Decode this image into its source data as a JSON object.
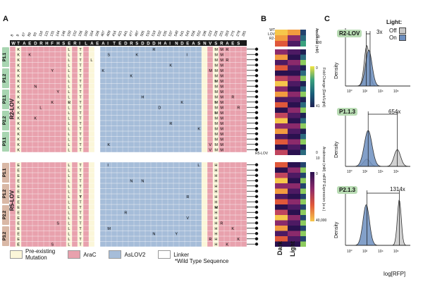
{
  "figure": {
    "panel_labels": [
      "A",
      "B",
      "C"
    ],
    "header_positions": [
      "8",
      "9",
      "67",
      "89",
      "93",
      "110",
      "121",
      "131",
      "144",
      "146",
      "150",
      "152",
      "156",
      "160",
      "164",
      "166",
      "407",
      "409",
      "416",
      "421",
      "441",
      "477",
      "487",
      "505",
      "510",
      "519",
      "532",
      "535",
      "537",
      "540",
      "541",
      "543",
      "556",
      "552",
      "196",
      "223",
      "226",
      "251",
      "263",
      "275",
      "278",
      "281"
    ],
    "wt_sequence": "WTAEDRHFHSERILAEAITEDRSDDDHAINDEASNVSRAES",
    "rows": [
      {
        "label": "WT",
        "subtitle": "*"
      },
      {
        "label": "P1.1",
        "group": "R2-LOV"
      },
      {
        "label": "P1.2",
        "group": "R2-LOV"
      },
      {
        "label": "P2.1",
        "group": "R2-LOV"
      },
      {
        "label": "P2.2",
        "group": "R2-LOV"
      },
      {
        "label": "P3.1",
        "group": "R2-LOV"
      },
      {
        "label": "P1.1",
        "group": "R5-LOV"
      },
      {
        "label": "P1.2",
        "group": "R5-LOV"
      },
      {
        "label": "P2.2",
        "group": "R5-LOV"
      },
      {
        "label": "P3.2",
        "group": "R5-LOV"
      }
    ],
    "group_labels": {
      "r2": "R2-LOV",
      "r5": "R5-LOV"
    },
    "col_annotations": {
      "k_col": "K",
      "i_col": "I",
      "l_col": "L",
      "t_col": "T",
      "m_col": "M",
      "e_col": "E",
      "h_col": "H"
    },
    "mutations": [
      {
        "txt": "R"
      },
      {
        "txt": "K"
      },
      {
        "txt": "S"
      },
      {
        "txt": "K"
      },
      {
        "txt": "I"
      },
      {
        "txt": "R"
      },
      {
        "txt": "Y"
      },
      {
        "txt": "K"
      },
      {
        "txt": "K"
      },
      {
        "txt": "M"
      },
      {
        "txt": "N"
      },
      {
        "txt": "Y"
      },
      {
        "txt": "H"
      },
      {
        "txt": "R"
      },
      {
        "txt": "M"
      },
      {
        "txt": "K"
      },
      {
        "txt": "L"
      },
      {
        "txt": "R"
      },
      {
        "txt": "D"
      },
      {
        "txt": "K"
      },
      {
        "txt": "R"
      },
      {
        "txt": "M"
      },
      {
        "txt": "K"
      },
      {
        "txt": "R"
      },
      {
        "txt": "K"
      },
      {
        "txt": "V"
      },
      {
        "txt": "K"
      },
      {
        "txt": "V"
      },
      {
        "txt": "L"
      },
      {
        "txt": "K"
      },
      {
        "txt": "R"
      },
      {
        "txt": "M"
      },
      {
        "txt": "I"
      },
      {
        "txt": "N"
      },
      {
        "txt": "N"
      },
      {
        "txt": "R"
      },
      {
        "txt": "R"
      },
      {
        "txt": "Y"
      },
      {
        "txt": "V"
      },
      {
        "txt": "R"
      },
      {
        "txt": "M"
      },
      {
        "txt": "S"
      },
      {
        "txt": "M"
      },
      {
        "txt": "Y"
      },
      {
        "txt": "R"
      },
      {
        "txt": "N"
      },
      {
        "txt": "K"
      },
      {
        "txt": "L"
      },
      {
        "txt": "S"
      },
      {
        "txt": "E"
      },
      {
        "txt": "K"
      },
      {
        "txt": "K"
      }
    ],
    "legend": {
      "items": [
        {
          "label": "Pre-existing\nMutation",
          "color": "#fbf6d9"
        },
        {
          "label": "AraC",
          "color": "#e8a1ad"
        },
        {
          "label": "AsLOV2",
          "color": "#a6bdd9"
        },
        {
          "label": "Linker",
          "color": "#ffffff"
        }
      ],
      "wt_note": "*Wild Type Sequence"
    },
    "panel_b": {
      "col_labels": [
        "Dark",
        "Light"
      ],
      "top_labels": [
        "WT",
        "LOV",
        "R2-"
      ],
      "r5_label": "R5-LOV",
      "scale_top": {
        "title": "Arabinose (mM)",
        "ticks": [
          "0",
          "10",
          "100"
        ]
      },
      "scale_fold": {
        "title": "Fold Change (Dark/Light)",
        "ticks": [
          "0",
          "41"
        ]
      },
      "scale_ara2": {
        "title": "Arabinose (mM)",
        "ticks": [
          "0",
          "10"
        ]
      },
      "scale_expr": {
        "title": "mRFP Expression (a.u.)",
        "ticks": [
          "0",
          "40,000"
        ]
      }
    },
    "panel_c": {
      "legend_title": "Light:",
      "legend_off": "Off",
      "legend_on": "On",
      "off_color": "#c9c9c9",
      "on_color": "#6d8fc0",
      "plots": [
        {
          "name": "R2-LOV",
          "fold": "3x"
        },
        {
          "name": "P1.1.3",
          "fold": "654x"
        },
        {
          "name": "P2.1.3",
          "fold": "1314x"
        }
      ],
      "ylabel": "Density",
      "xlabel": "log[RFP]",
      "xticks": [
        "10⁰",
        "10²",
        "10⁴",
        "10⁶"
      ]
    }
  }
}
